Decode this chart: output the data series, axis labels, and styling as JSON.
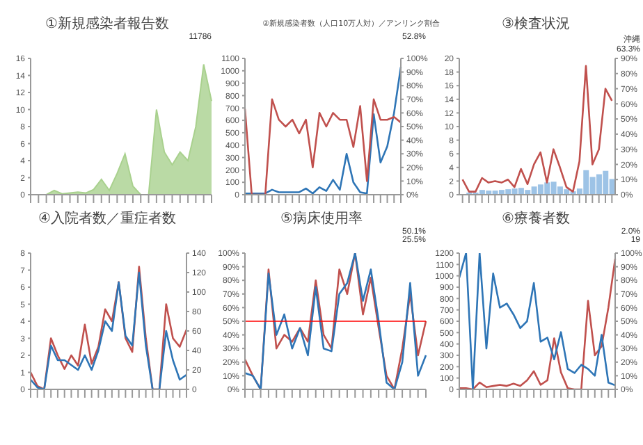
{
  "chart_data": [
    {
      "type": "area",
      "title": "①新規感染者報告数",
      "categories": [
        null,
        null,
        null,
        null,
        null,
        null,
        null,
        null,
        null,
        null,
        null,
        null,
        null,
        null,
        null,
        null,
        null,
        null,
        null,
        null,
        null,
        null,
        null,
        null
      ],
      "series": [
        {
          "color": "#a9d18e",
          "values": [
            0,
            0,
            0,
            0.5,
            0.1,
            0.2,
            0.3,
            0.2,
            0.6,
            1.8,
            0.5,
            2.5,
            4.8,
            1.0,
            0,
            0,
            10,
            5,
            3.5,
            5,
            4,
            8,
            15.3,
            11
          ]
        }
      ],
      "ylim": [
        0,
        16
      ],
      "yticks": [
        0,
        2,
        4,
        6,
        8,
        10,
        12,
        14,
        16
      ],
      "annotations": [
        "11786"
      ]
    },
    {
      "type": "line",
      "title": "②新規感染者数（人口10万人対）／アンリンク割合",
      "categories": [
        null,
        null,
        null,
        null,
        null,
        null,
        null,
        null,
        null,
        null,
        null,
        null,
        null,
        null,
        null,
        null,
        null,
        null,
        null,
        null,
        null,
        null,
        null,
        null
      ],
      "series": [
        {
          "color": "#2e75b6",
          "values": [
            10,
            10,
            10,
            10,
            40,
            20,
            20,
            20,
            20,
            50,
            10,
            60,
            30,
            120,
            40,
            330,
            100,
            20,
            10,
            650,
            260,
            390,
            660,
            1030
          ]
        },
        {
          "color": "#c0504d",
          "axis": "y2",
          "values": [
            63,
            0,
            0,
            0,
            70,
            55,
            50,
            55,
            45,
            55,
            20,
            60,
            50,
            60,
            55,
            55,
            35,
            65,
            10,
            70,
            55,
            55,
            57,
            53
          ]
        }
      ],
      "ylim": [
        0,
        1100
      ],
      "yticks": [
        0,
        100,
        200,
        300,
        400,
        500,
        600,
        700,
        800,
        900,
        1000,
        1100
      ],
      "y2lim": [
        0,
        100
      ],
      "y2ticks": [
        {
          "value": 0,
          "label": "0%"
        },
        {
          "value": 10,
          "label": "10%"
        },
        {
          "value": 20,
          "label": "20%"
        },
        {
          "value": 30,
          "label": "30%"
        },
        {
          "value": 40,
          "label": "40%"
        },
        {
          "value": 50,
          "label": "50%"
        },
        {
          "value": 60,
          "label": "60%"
        },
        {
          "value": 70,
          "label": "70%"
        },
        {
          "value": 80,
          "label": "80%"
        },
        {
          "value": 90,
          "label": "90%"
        },
        {
          "value": 100,
          "label": "100%"
        }
      ],
      "annotations": [
        "52.8%"
      ]
    },
    {
      "type": "line",
      "title": "③検査状況",
      "categories": [
        null,
        null,
        null,
        null,
        null,
        null,
        null,
        null,
        null,
        null,
        null,
        null,
        null,
        null,
        null,
        null,
        null,
        null,
        null,
        null,
        null,
        null,
        null,
        null
      ],
      "series": [
        {
          "type": "bar",
          "color": "#9dc3e6",
          "values": [
            0.1,
            0.3,
            0.3,
            0.7,
            0.6,
            0.6,
            0.7,
            0.8,
            0.9,
            1.0,
            0.7,
            1.2,
            1.5,
            1.8,
            1.9,
            1.2,
            0.8,
            0.5,
            0.9,
            3.6,
            2.6,
            3.0,
            3.5,
            2.3
          ]
        },
        {
          "color": "#c0504d",
          "axis": "y2",
          "values": [
            10,
            2,
            2,
            11,
            8,
            9,
            8,
            10,
            5,
            17,
            7,
            20,
            28,
            8,
            30,
            18,
            5,
            2,
            22,
            85,
            20,
            30,
            70,
            62
          ]
        }
      ],
      "ylim": [
        0,
        20
      ],
      "yticks": [
        0,
        2,
        4,
        6,
        8,
        10,
        12,
        14,
        16,
        18,
        20
      ],
      "y2lim": [
        0,
        90
      ],
      "y2ticks": [
        {
          "value": 0,
          "label": "0%"
        },
        {
          "value": 10,
          "label": "10%"
        },
        {
          "value": 20,
          "label": "20%"
        },
        {
          "value": 30,
          "label": "30%"
        },
        {
          "value": 40,
          "label": "40%"
        },
        {
          "value": 50,
          "label": "50%"
        },
        {
          "value": 60,
          "label": "60%"
        },
        {
          "value": 70,
          "label": "70%"
        },
        {
          "value": 80,
          "label": "80%"
        },
        {
          "value": 90,
          "label": "90%"
        }
      ],
      "annotations": [
        "沖縄",
        "63.3%"
      ]
    },
    {
      "type": "line",
      "title": "④入院者数／重症者数",
      "categories": [
        null,
        null,
        null,
        null,
        null,
        null,
        null,
        null,
        null,
        null,
        null,
        null,
        null,
        null,
        null,
        null,
        null,
        null,
        null,
        null,
        null,
        null,
        null,
        null
      ],
      "series": [
        {
          "color": "#c0504d",
          "values": [
            1,
            0.2,
            0,
            3,
            2,
            1.2,
            2,
            1.4,
            3.8,
            1.5,
            2.5,
            4.7,
            4,
            6.3,
            3,
            2.2,
            7.2,
            3,
            0,
            0,
            5,
            3,
            2.5,
            3.5
          ]
        },
        {
          "color": "#2e75b6",
          "axis": "y2",
          "values": [
            10,
            2,
            0,
            45,
            30,
            30,
            25,
            20,
            35,
            20,
            40,
            70,
            60,
            110,
            55,
            45,
            120,
            45,
            0,
            0,
            60,
            30,
            10,
            15
          ]
        }
      ],
      "ylim": [
        0,
        8
      ],
      "yticks": [
        0,
        1,
        2,
        3,
        4,
        5,
        6,
        7,
        8
      ],
      "y2lim": [
        0,
        140
      ],
      "y2ticks": [
        0,
        20,
        40,
        60,
        80,
        100,
        120,
        140
      ]
    },
    {
      "type": "line",
      "title": "⑤病床使用率",
      "categories": [
        null,
        null,
        null,
        null,
        null,
        null,
        null,
        null,
        null,
        null,
        null,
        null,
        null,
        null,
        null,
        null,
        null,
        null,
        null,
        null,
        null,
        null,
        null,
        null
      ],
      "series": [
        {
          "color": "#c0504d",
          "values": [
            22,
            10,
            0,
            88,
            30,
            40,
            35,
            45,
            35,
            80,
            40,
            30,
            88,
            70,
            100,
            55,
            82,
            45,
            10,
            0,
            30,
            70,
            25,
            50
          ]
        },
        {
          "color": "#2e75b6",
          "values": [
            12,
            10,
            0,
            85,
            40,
            55,
            30,
            45,
            25,
            75,
            30,
            28,
            70,
            78,
            100,
            65,
            88,
            50,
            5,
            0,
            20,
            78,
            10,
            25
          ]
        }
      ],
      "ylim": [
        0,
        100
      ],
      "yticks": [
        {
          "value": 0,
          "label": "0%"
        },
        {
          "value": 10,
          "label": "10%"
        },
        {
          "value": 20,
          "label": "20%"
        },
        {
          "value": 30,
          "label": "30%"
        },
        {
          "value": 40,
          "label": "40%"
        },
        {
          "value": 50,
          "label": "50%"
        },
        {
          "value": 60,
          "label": "60%"
        },
        {
          "value": 70,
          "label": "70%"
        },
        {
          "value": 80,
          "label": "80%"
        },
        {
          "value": 90,
          "label": "90%"
        },
        {
          "value": 100,
          "label": "100%"
        }
      ],
      "ref_lines": [
        {
          "axis": "y",
          "value": 50,
          "color": "#ff0000"
        }
      ],
      "annotations": [
        "50.1%",
        "25.5%"
      ]
    },
    {
      "type": "line",
      "title": "⑥療養者数",
      "categories": [
        null,
        null,
        null,
        null,
        null,
        null,
        null,
        null,
        null,
        null,
        null,
        null,
        null,
        null,
        null,
        null,
        null,
        null,
        null,
        null,
        null,
        null,
        null,
        null
      ],
      "series": [
        {
          "color": "#c0504d",
          "values": [
            10,
            10,
            0,
            60,
            20,
            30,
            40,
            30,
            50,
            30,
            80,
            160,
            40,
            80,
            450,
            150,
            10,
            0,
            0,
            780,
            300,
            380,
            720,
            1150
          ]
        },
        {
          "color": "#2e75b6",
          "axis": "y2",
          "values": [
            82,
            100,
            0,
            100,
            30,
            85,
            60,
            63,
            55,
            45,
            50,
            78,
            35,
            38,
            22,
            42,
            15,
            12,
            18,
            15,
            10,
            40,
            5,
            3
          ]
        }
      ],
      "ylim": [
        0,
        1200
      ],
      "yticks": [
        0,
        100,
        200,
        300,
        400,
        500,
        600,
        700,
        800,
        900,
        1000,
        1100,
        1200
      ],
      "y2lim": [
        0,
        100
      ],
      "y2ticks": [
        {
          "value": 0,
          "label": "0%"
        },
        {
          "value": 10,
          "label": "10%"
        },
        {
          "value": 20,
          "label": "20%"
        },
        {
          "value": 30,
          "label": "30%"
        },
        {
          "value": 40,
          "label": "40%"
        },
        {
          "value": 50,
          "label": "50%"
        },
        {
          "value": 60,
          "label": "60%"
        },
        {
          "value": 70,
          "label": "70%"
        },
        {
          "value": 80,
          "label": "80%"
        },
        {
          "value": 90,
          "label": "90%"
        },
        {
          "value": 100,
          "label": "100%"
        }
      ],
      "annotations": [
        "2.0%",
        "19"
      ]
    }
  ]
}
